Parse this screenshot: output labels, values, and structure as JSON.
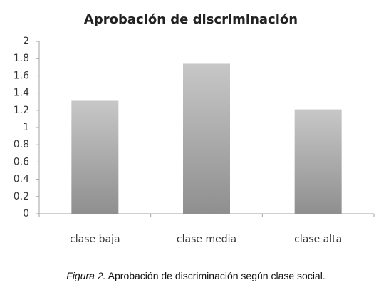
{
  "chart_data": {
    "type": "bar",
    "title": "Aprobación de discriminación",
    "categories": [
      "clase baja",
      "clase media",
      "clase alta"
    ],
    "values": [
      1.31,
      1.74,
      1.21
    ],
    "color": "#8f8f8f",
    "ylim": [
      0,
      2
    ],
    "yticks": [
      0,
      0.2,
      0.4,
      0.6,
      0.8,
      1,
      1.2,
      1.4,
      1.6,
      1.8,
      2
    ],
    "grid": false
  },
  "caption": {
    "label": "Figura 2.",
    "text": "Aprobación de discriminación según clase social."
  }
}
